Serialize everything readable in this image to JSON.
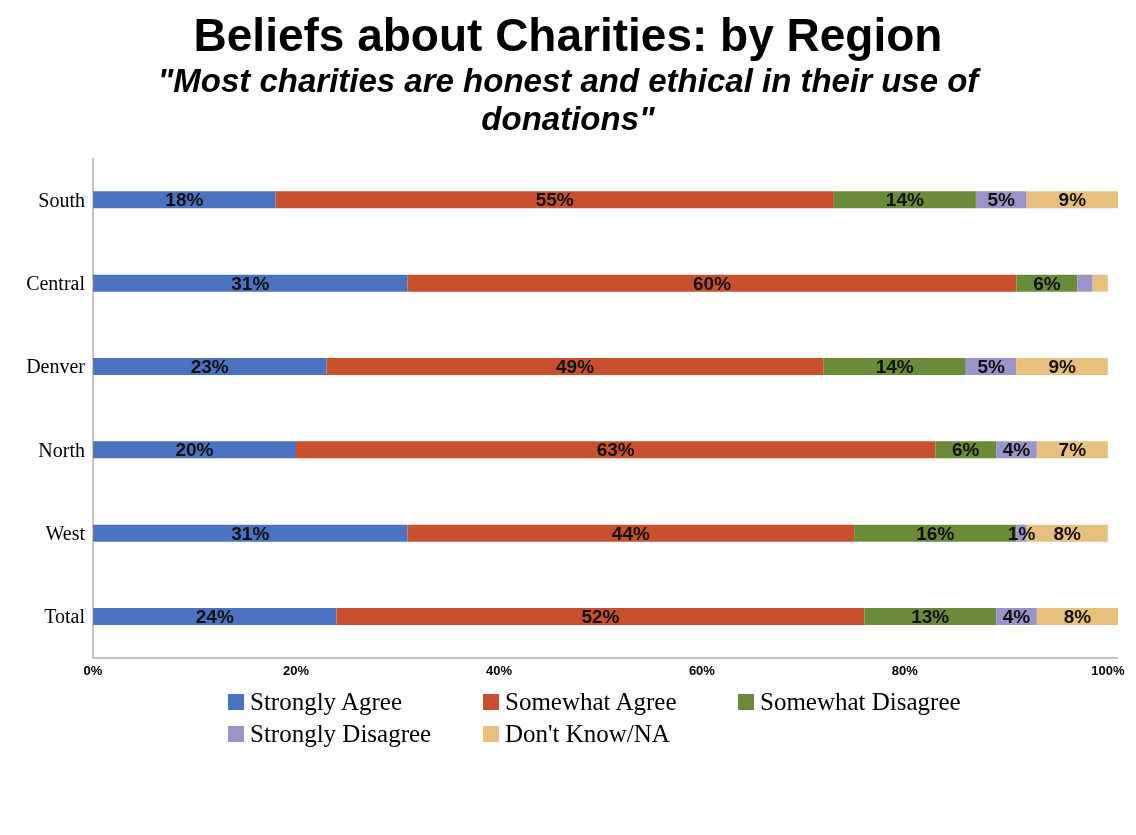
{
  "chart_data": {
    "type": "bar",
    "orientation": "horizontal",
    "stacked": true,
    "title": "Beliefs about Charities: by Region",
    "subtitle": "\"Most charities are honest and ethical in their use of donations\"",
    "categories": [
      "South",
      "Central",
      "Denver",
      "North",
      "West",
      "Total"
    ],
    "series": [
      {
        "name": "Strongly Agree",
        "color": "#4a72c0",
        "values": [
          18,
          31,
          23,
          20,
          31,
          24
        ],
        "value_labels": [
          "18%",
          "31%",
          "23%",
          "20%",
          "31%",
          "24%"
        ]
      },
      {
        "name": "Somewhat Agree",
        "color": "#c8502e",
        "values": [
          55,
          60,
          49,
          63,
          44,
          52
        ],
        "value_labels": [
          "55%",
          "60%",
          "49%",
          "63%",
          "44%",
          "52%"
        ]
      },
      {
        "name": "Somewhat Disagree",
        "color": "#6a8c3a",
        "values": [
          14,
          6,
          14,
          6,
          16,
          13
        ],
        "value_labels": [
          "14%",
          "6%",
          "14%",
          "6%",
          "16%",
          "13%"
        ]
      },
      {
        "name": "Strongly Disagree",
        "color": "#9a94c8",
        "values": [
          5,
          1.5,
          5,
          4,
          1,
          4
        ],
        "value_labels": [
          "5%",
          null,
          "5%",
          "4%",
          "1%",
          "4%"
        ]
      },
      {
        "name": "Don't Know/NA",
        "color": "#e8c07e",
        "values": [
          9,
          1.5,
          9,
          7,
          8,
          8
        ],
        "value_labels": [
          "9%",
          null,
          "9%",
          "7%",
          "8%",
          "8%"
        ]
      }
    ],
    "xlim": [
      0,
      101
    ],
    "xticks": [
      {
        "value": 0,
        "label": "0%"
      },
      {
        "value": 20,
        "label": "20%"
      },
      {
        "value": 40,
        "label": "40%"
      },
      {
        "value": 60,
        "label": "60%"
      },
      {
        "value": 80,
        "label": "80%"
      },
      {
        "value": 100,
        "label": "100%"
      }
    ],
    "grid": false,
    "legend": "bottom"
  }
}
